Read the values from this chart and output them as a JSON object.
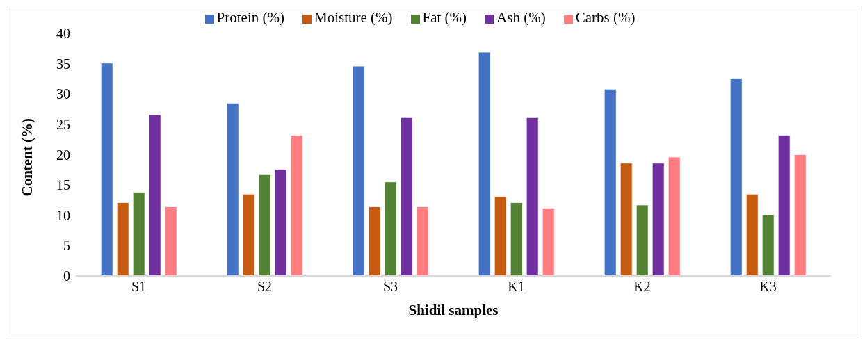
{
  "chart_data": {
    "type": "bar",
    "xlabel": "Shidil samples",
    "ylabel": "Content (%)",
    "categories": [
      "S1",
      "S2",
      "S3",
      "K1",
      "K2",
      "K3"
    ],
    "series": [
      {
        "name": "Protein (%)",
        "color": "#4472c4",
        "values": [
          35.1,
          28.5,
          34.6,
          36.9,
          30.8,
          32.6
        ]
      },
      {
        "name": "Moisture (%)",
        "color": "#c55a11",
        "values": [
          12.1,
          13.5,
          11.4,
          13.1,
          18.6,
          13.5
        ]
      },
      {
        "name": "Fat (%)",
        "color": "#548235",
        "values": [
          13.8,
          16.7,
          15.5,
          12.1,
          11.7,
          10.1
        ]
      },
      {
        "name": "Ash (%)",
        "color": "#7030a0",
        "values": [
          26.6,
          17.6,
          26.1,
          26.1,
          18.6,
          23.2
        ]
      },
      {
        "name": "Carbs (%)",
        "color": "#ff7c80",
        "values": [
          11.4,
          23.2,
          11.4,
          11.2,
          19.6,
          20.0
        ]
      }
    ],
    "ylim": [
      0,
      40
    ],
    "yticks": [
      0,
      5,
      10,
      15,
      20,
      25,
      30,
      35,
      40
    ],
    "grid": false,
    "legend": "top"
  }
}
